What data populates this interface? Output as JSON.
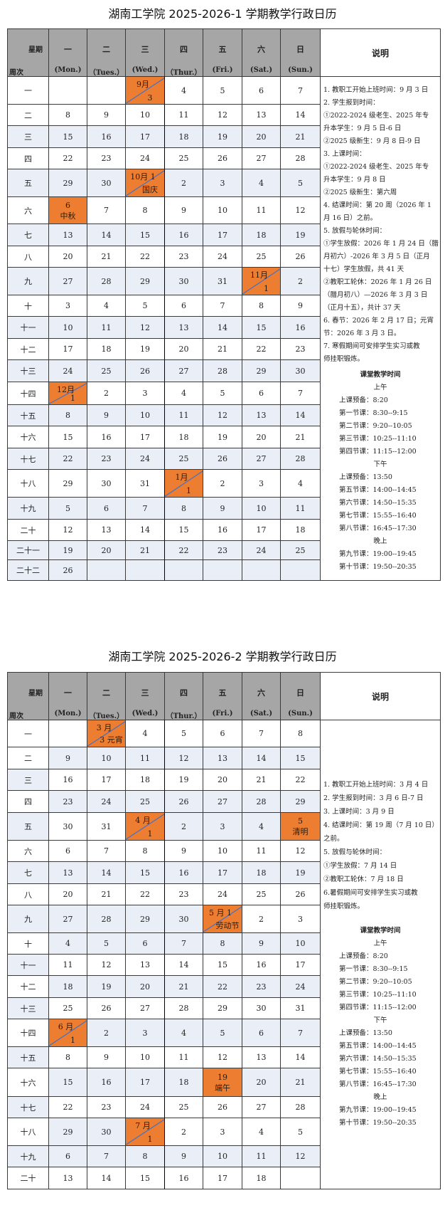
{
  "colors": {
    "header_bg": "#a6a6a6",
    "shaded_bg": "#e9eef7",
    "holiday_bg": "#ed7d31",
    "diagonal_line": "#4472c4"
  },
  "calendars": [
    {
      "title": "湖南工学院 2025-2026-1 学期教学行政日历",
      "header": {
        "corner_top": "星期",
        "corner_bottom": "周次",
        "days": [
          {
            "cn": "一",
            "en": "(Mon.)"
          },
          {
            "cn": "二",
            "en": "（Tues.）"
          },
          {
            "cn": "三",
            "en": "(Wed.)"
          },
          {
            "cn": "四",
            "en": "（Thur.）"
          },
          {
            "cn": "五",
            "en": "(Fri.)"
          },
          {
            "cn": "六",
            "en": "(Sat.)"
          },
          {
            "cn": "日",
            "en": "(Sun.)"
          }
        ],
        "notes_title": "说明"
      },
      "weeks": [
        {
          "label": "一",
          "shaded": "00000000",
          "cells": [
            "",
            "",
            {
              "type": "split",
              "top": "9月",
              "bottom": "3"
            },
            "4",
            "5",
            "6",
            "7"
          ]
        },
        {
          "label": "二",
          "shaded": "00000000",
          "cells": [
            "8",
            "9",
            "10",
            "11",
            "12",
            "13",
            "14"
          ]
        },
        {
          "label": "三",
          "shaded": "11111111",
          "cells": [
            "15",
            "16",
            "17",
            "18",
            "19",
            "20",
            "21"
          ]
        },
        {
          "label": "四",
          "shaded": "00000000",
          "cells": [
            "22",
            "23",
            "24",
            "25",
            "26",
            "27",
            "28"
          ]
        },
        {
          "label": "五",
          "shaded": "11111111",
          "cells": [
            "29",
            "30",
            {
              "type": "split",
              "top": "10月 1",
              "bottom": "国庆"
            },
            "2",
            "3",
            "4",
            "5"
          ]
        },
        {
          "label": "六",
          "shaded": "00000000",
          "cells": [
            {
              "type": "stack",
              "top": "6",
              "bottom": "中秋"
            },
            "7",
            "8",
            "9",
            "10",
            "11",
            "12"
          ]
        },
        {
          "label": "七",
          "shaded": "11111111",
          "cells": [
            "13",
            "14",
            "15",
            "16",
            "17",
            "18",
            "19"
          ]
        },
        {
          "label": "八",
          "shaded": "00000000",
          "cells": [
            "20",
            "21",
            "22",
            "23",
            "24",
            "25",
            "26"
          ]
        },
        {
          "label": "九",
          "shaded": "11111111",
          "cells": [
            "27",
            "28",
            "29",
            "30",
            "31",
            {
              "type": "split",
              "top": "11月",
              "bottom": "1"
            },
            "2"
          ]
        },
        {
          "label": "十",
          "shaded": "00000000",
          "cells": [
            "3",
            "4",
            "5",
            "6",
            "7",
            "8",
            "9"
          ]
        },
        {
          "label": "十一",
          "shaded": "11111111",
          "cells": [
            "10",
            "11",
            "12",
            "13",
            "14",
            "15",
            "16"
          ]
        },
        {
          "label": "十二",
          "shaded": "00000000",
          "cells": [
            "17",
            "18",
            "19",
            "20",
            "21",
            "22",
            "23"
          ]
        },
        {
          "label": "十三",
          "shaded": "11111111",
          "cells": [
            "24",
            "25",
            "26",
            "27",
            "28",
            "29",
            "30"
          ]
        },
        {
          "label": "十四",
          "shaded": "00000000",
          "cells": [
            {
              "type": "split",
              "top": "12月",
              "bottom": "1"
            },
            "2",
            "3",
            "4",
            "5",
            "6",
            "7"
          ]
        },
        {
          "label": "十五",
          "shaded": "11111111",
          "cells": [
            "8",
            "9",
            "10",
            "11",
            "12",
            "13",
            "14"
          ]
        },
        {
          "label": "十六",
          "shaded": "00000000",
          "cells": [
            "15",
            "16",
            "17",
            "18",
            "19",
            "20",
            "21"
          ]
        },
        {
          "label": "十七",
          "shaded": "11111111",
          "cells": [
            "22",
            "23",
            "24",
            "25",
            "26",
            "27",
            "28"
          ]
        },
        {
          "label": "十八",
          "shaded": "00000000",
          "cells": [
            "29",
            "30",
            "31",
            {
              "type": "split",
              "top": "1月",
              "bottom": "1"
            },
            "2",
            "3",
            "4"
          ]
        },
        {
          "label": "十九",
          "shaded": "11111111",
          "cells": [
            "5",
            "6",
            "7",
            "8",
            "9",
            "10",
            "11"
          ]
        },
        {
          "label": "二十",
          "shaded": "00000000",
          "cells": [
            "12",
            "13",
            "14",
            "15",
            "16",
            "17",
            "18"
          ]
        },
        {
          "label": "二十一",
          "shaded": "11111111",
          "cells": [
            "19",
            "20",
            "21",
            "22",
            "23",
            "24",
            "25"
          ]
        },
        {
          "label": "二十二",
          "shaded": "11111111",
          "cells": [
            "26",
            "",
            "",
            "",
            "",
            "",
            ""
          ]
        }
      ],
      "notes": [
        "1. 教职工开始上班时间：9 月 3 日",
        "2. 学生报到时间：",
        "①2022-2024 级老生、2025 年专",
        "升本学生：9 月 5 日-6 日",
        "②2025 级新生：9 月 8 日-9 日",
        "3. 上课时间：",
        "①2022-2024 级老生、2025 年专",
        "升本学生：9 月 8 日",
        "②2025 级新生：第六周",
        "4. 结课时间：第 20 周（2026 年 1",
        "月 16 日）之前。",
        "5. 放假与轮休时间：",
        "①学生放假：2026 年 1 月 24 日（腊",
        "月初六）-2026 年 3 月 5 日（正月",
        "十七）学生放假，共 41 天",
        "②教职工轮休：2026 年 1 月 26 日",
        "（腊月初八）—2026 年 3 月 3 日",
        "（正月十五），共计 37 天",
        "6. 春节：2026 年 2 月 17 日；元宵",
        "节：2026 年 3 月 3 日。",
        "7. 寒假期间可安排学生实习或教",
        "师挂职锻炼。"
      ],
      "schedule": {
        "title": "课堂教学时间",
        "sections": [
          {
            "name": "上午",
            "items": [
              "上课预备：8:20",
              "第一节课：8:30--9:15",
              "第二节课：9:20--10:05",
              "第三节课：10:25--11:10",
              "第四节课：11:15--12:00"
            ]
          },
          {
            "name": "下午",
            "items": [
              "上课预备：13:50",
              "第五节课：14:00--14:45",
              "第六节课：14:50--15:35",
              "第七节课：15:55--16:40",
              "第八节课：16:45--17:30"
            ]
          },
          {
            "name": "晚上",
            "items": [
              "第九节课：19:00--19:45",
              "第十节课：19:50--20:35"
            ]
          }
        ]
      }
    },
    {
      "title": "湖南工学院 2025-2026-2 学期教学行政日历",
      "header": {
        "corner_top": "星期",
        "corner_bottom": "周次",
        "days": [
          {
            "cn": "一",
            "en": "(Mon.)"
          },
          {
            "cn": "二",
            "en": "（Tues.）"
          },
          {
            "cn": "三",
            "en": "(Wed.)"
          },
          {
            "cn": "四",
            "en": "（Thur.）"
          },
          {
            "cn": "五",
            "en": "(Fri.)"
          },
          {
            "cn": "六",
            "en": "(Sat.)"
          },
          {
            "cn": "日",
            "en": "(Sun.)"
          }
        ],
        "notes_title": "说明"
      },
      "weeks": [
        {
          "label": "一",
          "shaded": "00000000",
          "cells": [
            "",
            {
              "type": "split",
              "top": "3 月",
              "bottom": "3 元宵"
            },
            "4",
            "5",
            "6",
            "7",
            "8"
          ]
        },
        {
          "label": "二",
          "shaded": "01111111",
          "cells": [
            "9",
            "10",
            "11",
            "12",
            "13",
            "14",
            "15"
          ]
        },
        {
          "label": "三",
          "shaded": "10000000",
          "cells": [
            "16",
            "17",
            "18",
            "19",
            "20",
            "21",
            "22"
          ]
        },
        {
          "label": "四",
          "shaded": "01111111",
          "cells": [
            "23",
            "24",
            "25",
            "26",
            "27",
            "28",
            "29"
          ]
        },
        {
          "label": "五",
          "shaded": "10001110",
          "cells": [
            "30",
            "31",
            {
              "type": "split",
              "top": "4 月",
              "bottom": "1"
            },
            "2",
            "3",
            "4",
            {
              "type": "stack",
              "top": "5",
              "bottom": "清明"
            }
          ]
        },
        {
          "label": "六",
          "shaded": "00000000",
          "cells": [
            "6",
            "7",
            "8",
            "9",
            "10",
            "11",
            "12"
          ]
        },
        {
          "label": "七",
          "shaded": "11111111",
          "cells": [
            "13",
            "14",
            "15",
            "16",
            "17",
            "18",
            "19"
          ]
        },
        {
          "label": "八",
          "shaded": "00000000",
          "cells": [
            "20",
            "21",
            "22",
            "23",
            "24",
            "25",
            "26"
          ]
        },
        {
          "label": "九",
          "shaded": "11111000",
          "cells": [
            "27",
            "28",
            "29",
            "30",
            {
              "type": "split",
              "top": "5 月 1",
              "bottom": "劳动节"
            },
            "2",
            "3"
          ]
        },
        {
          "label": "十",
          "shaded": "01111111",
          "cells": [
            "4",
            "5",
            "6",
            "7",
            "8",
            "9",
            "10"
          ]
        },
        {
          "label": "十一",
          "shaded": "10000000",
          "cells": [
            "11",
            "12",
            "13",
            "14",
            "15",
            "16",
            "17"
          ]
        },
        {
          "label": "十二",
          "shaded": "01111111",
          "cells": [
            "18",
            "19",
            "20",
            "21",
            "22",
            "23",
            "24"
          ]
        },
        {
          "label": "十三",
          "shaded": "10000000",
          "cells": [
            "25",
            "26",
            "27",
            "28",
            "29",
            "30",
            "31"
          ]
        },
        {
          "label": "十四",
          "shaded": "00111111",
          "cells": [
            {
              "type": "split",
              "top": "6 月",
              "bottom": "1"
            },
            "2",
            "3",
            "4",
            "5",
            "6",
            "7"
          ]
        },
        {
          "label": "十五",
          "shaded": "10000000",
          "cells": [
            "8",
            "9",
            "10",
            "11",
            "12",
            "13",
            "14"
          ]
        },
        {
          "label": "十六",
          "shaded": "01111011",
          "cells": [
            "15",
            "16",
            "17",
            "18",
            {
              "type": "stack",
              "top": "19",
              "bottom": "端午"
            },
            "20",
            "21"
          ]
        },
        {
          "label": "十七",
          "shaded": "10000000",
          "cells": [
            "22",
            "23",
            "24",
            "25",
            "26",
            "27",
            "28"
          ]
        },
        {
          "label": "十八",
          "shaded": "01100000",
          "cells": [
            "29",
            "30",
            {
              "type": "split",
              "top": "7 月",
              "bottom": "1"
            },
            "2",
            "3",
            "4",
            "5"
          ]
        },
        {
          "label": "十九",
          "shaded": "11111111",
          "cells": [
            "6",
            "7",
            "8",
            "9",
            "10",
            "11",
            "12"
          ]
        },
        {
          "label": "二十",
          "shaded": "00000000",
          "cells": [
            "13",
            "14",
            "15",
            "16",
            "17",
            "18",
            ""
          ]
        }
      ],
      "notes": [
        "1. 教职工开始上班时间：3 月 4 日",
        "2. 学生报到时间：3 月 6 日-7 日",
        "3. 上课时间：3 月 9 日",
        "4. 结课时间：第 19 周（7 月 10 日）",
        "之前。",
        "5. 放假与轮休时间：",
        "①学生放假：7 月 14 日",
        "②教职工轮休：7 月 18 日",
        "6.暑假期间可安排学生实习或教",
        "师挂职锻炼。"
      ],
      "schedule": {
        "title": "课堂教学时间",
        "sections": [
          {
            "name": "上午",
            "items": [
              "上课预备：8:20",
              "第一节课：8:30--9:15",
              "第二节课：9:20--10:05",
              "第三节课：10:25--11:10",
              "第四节课：11:15--12:00"
            ]
          },
          {
            "name": "下午",
            "items": [
              "上课预备：13:50",
              "第五节课：14:00--14:45",
              "第六节课：14:50--15:35",
              "第七节课：15:55--16:40",
              "第八节课：16:45--17:30"
            ]
          },
          {
            "name": "晚上",
            "items": [
              "第九节课：19:00--19:45",
              "第十节课：19:50--20:35"
            ]
          }
        ]
      }
    }
  ]
}
